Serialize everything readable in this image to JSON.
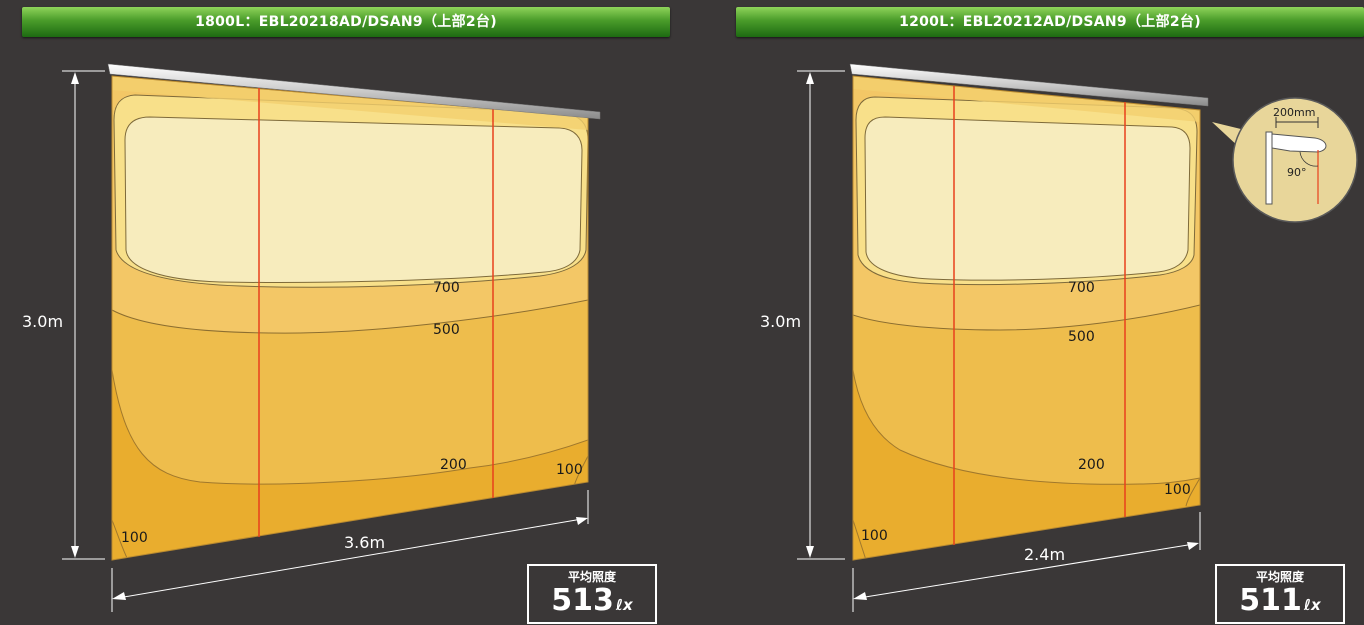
{
  "panels": [
    {
      "title": "1800L：EBL20218AD/DSAN9（上部2台)",
      "height_label": "3.0m",
      "width_label": "3.6m",
      "contours": [
        "700",
        "500",
        "200",
        "100",
        "100"
      ],
      "average": {
        "label": "平均照度",
        "value": "513",
        "unit": "ℓx"
      }
    },
    {
      "title": "1200L：EBL20212AD/DSAN9（上部2台)",
      "height_label": "3.0m",
      "width_label": "2.4m",
      "contours": [
        "700",
        "500",
        "200",
        "100",
        "100"
      ],
      "average": {
        "label": "平均照度",
        "value": "511",
        "unit": "ℓx"
      }
    }
  ],
  "detail_callout": {
    "distance": "200mm",
    "angle": "90°"
  },
  "colors": {
    "background": "#3a3737",
    "zone_over_700": "#f7ecbd",
    "zone_700": "#f8e08a",
    "zone_500": "#f3c766",
    "zone_200": "#eebd4c",
    "zone_100": "#e9ad2e",
    "fixture_line": "#e8401c"
  }
}
